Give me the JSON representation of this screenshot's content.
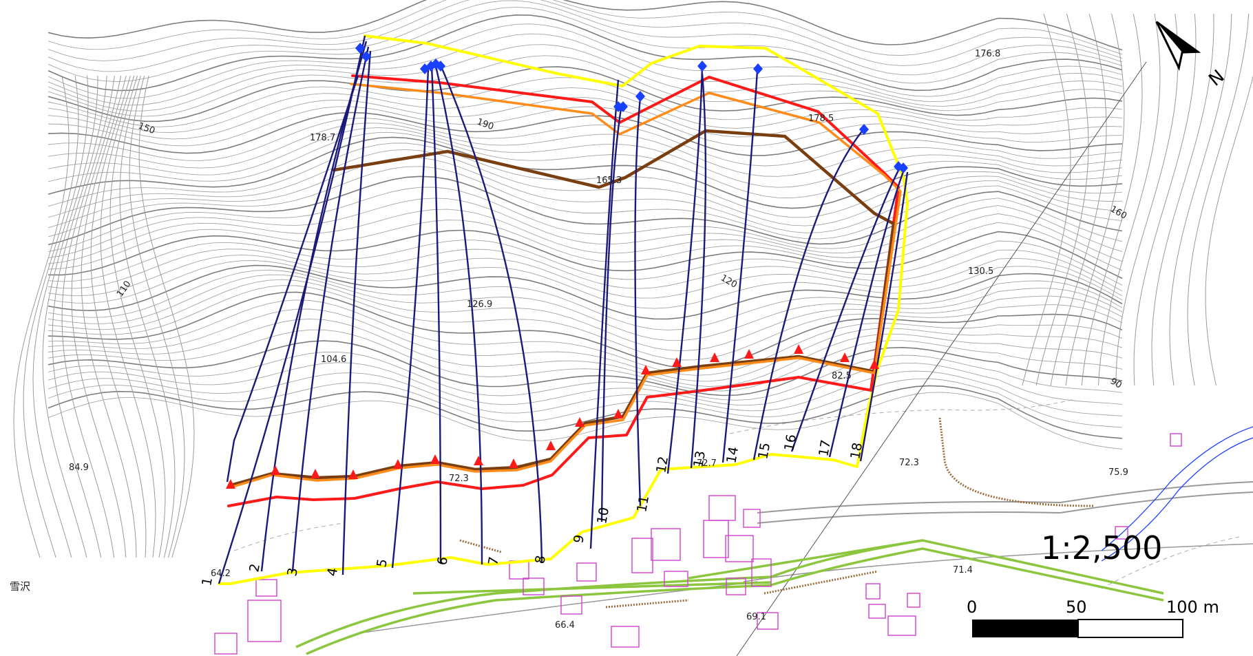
{
  "map": {
    "scale_label": "1:2,500",
    "scale_bar": {
      "tick_labels": [
        "0",
        "50",
        "100 m"
      ]
    },
    "north_arrow": {
      "label": "N",
      "icon": "north-arrow-icon"
    },
    "place_name": "雪沢",
    "elevation_labels": [
      {
        "text": "176.8"
      },
      {
        "text": "178.7"
      },
      {
        "text": "190"
      },
      {
        "text": "178.5"
      },
      {
        "text": "150"
      },
      {
        "text": "165.3"
      },
      {
        "text": "160"
      },
      {
        "text": "130.5"
      },
      {
        "text": "126.9"
      },
      {
        "text": "120"
      },
      {
        "text": "110"
      },
      {
        "text": "104.6"
      },
      {
        "text": "90"
      },
      {
        "text": "82.5"
      },
      {
        "text": "84.9"
      },
      {
        "text": "72.3"
      },
      {
        "text": "72.7"
      },
      {
        "text": "72.3"
      },
      {
        "text": "75.9"
      },
      {
        "text": "71.4"
      },
      {
        "text": "66.4"
      },
      {
        "text": "69.1"
      },
      {
        "text": "64.2"
      }
    ],
    "profile_line_numbers": [
      "1",
      "2",
      "3",
      "4",
      "5",
      "6",
      "7",
      "8",
      "9",
      "10",
      "11",
      "12",
      "13",
      "14",
      "15",
      "16",
      "17",
      "18"
    ],
    "colors": {
      "boundary": "#ffff00",
      "profile_lines": "#1a1a7a",
      "red_line": "#ff1a1a",
      "orange_line": "#ff8c1a",
      "brown_line": "#7a3f10",
      "contour": "#9a9a9a",
      "building": "#d040d0",
      "road_green": "#8cc63f",
      "marker_blue": "#1a40ff",
      "marker_red": "#ff1a1a"
    }
  }
}
